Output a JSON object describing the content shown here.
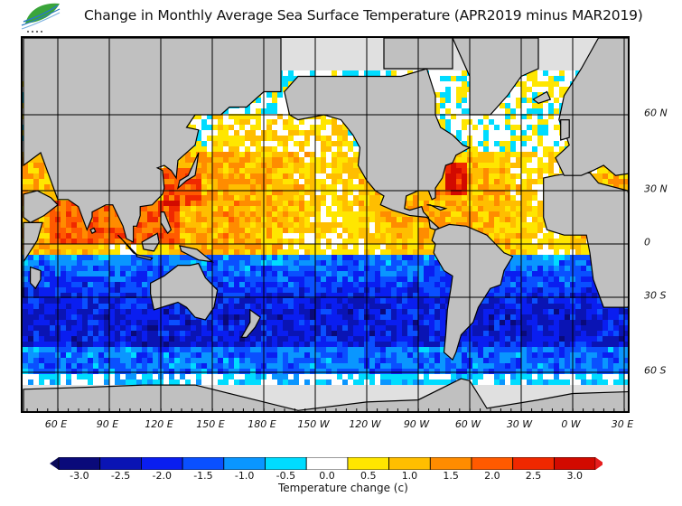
{
  "header": {
    "logo_text": "氣象局",
    "title": "Change in Monthly Average Sea Surface Temperature (APR2019 minus MAR2019)"
  },
  "map": {
    "longitude_labels": [
      "60 E",
      "90 E",
      "120 E",
      "150 E",
      "180 E",
      "150 W",
      "120 W",
      "90 W",
      "60 W",
      "30 W",
      "0 W",
      "30 E"
    ],
    "latitude_labels": [
      "60 N",
      "30 N",
      "0",
      "30 S",
      "60 S"
    ],
    "land_color": "#c0c0c0",
    "ice_color": "#e0e0e0",
    "grid_color": "#000000"
  },
  "legend": {
    "title": "Temperature change  (c)",
    "tick_labels": [
      "-3.0",
      "-2.5",
      "-2.0",
      "-1.5",
      "-1.0",
      "-0.5",
      "0.0",
      "0.5",
      "1.0",
      "1.5",
      "2.0",
      "2.5",
      "3.0"
    ],
    "colors": [
      "#0a0a7a",
      "#0a14b4",
      "#0a1ef0",
      "#0a50ff",
      "#0a96ff",
      "#00dcff",
      "#ffffff",
      "#ffe600",
      "#ffbe00",
      "#ff8c00",
      "#ff5a00",
      "#f02800",
      "#d20a00"
    ],
    "under_color": "#0a0a5a",
    "over_color": "#e61e1e"
  }
}
